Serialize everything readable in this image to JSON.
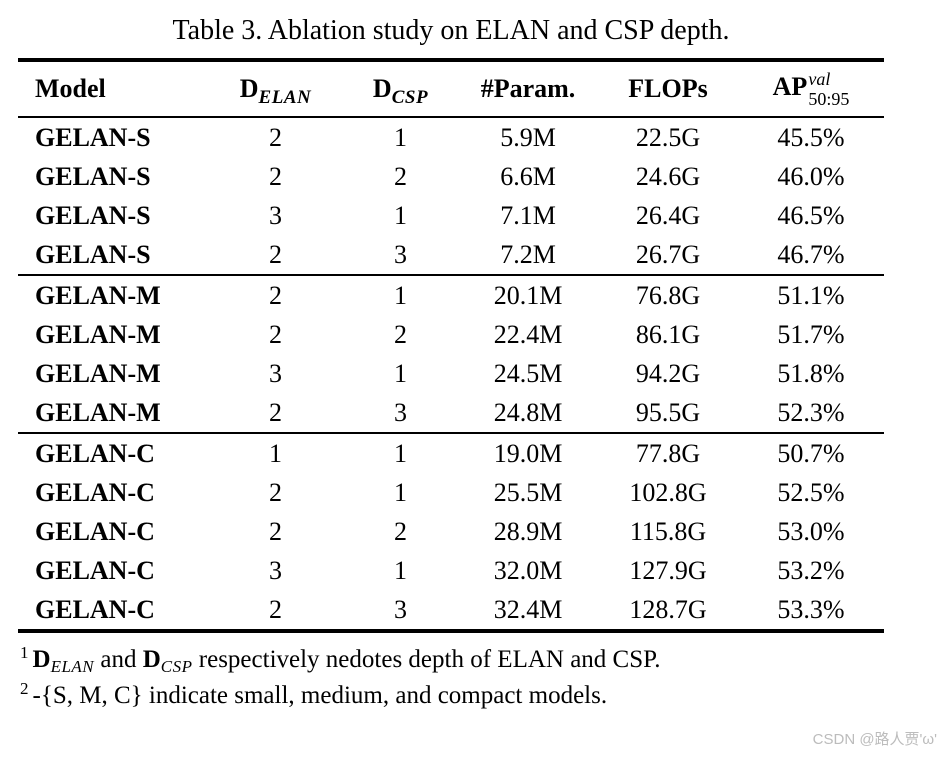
{
  "caption": "Table 3. Ablation study on ELAN and CSP depth.",
  "table": {
    "headers": {
      "model": "Model",
      "d_elan": {
        "base": "D",
        "sub": "ELAN"
      },
      "d_csp": {
        "base": "D",
        "sub": "CSP"
      },
      "params": "#Param.",
      "flops": "FLOPs",
      "ap": {
        "base": "AP",
        "sup": "val",
        "sub": "50:95"
      }
    },
    "groups": [
      {
        "rows": [
          [
            "GELAN-S",
            "2",
            "1",
            "5.9M",
            "22.5G",
            "45.5%"
          ],
          [
            "GELAN-S",
            "2",
            "2",
            "6.6M",
            "24.6G",
            "46.0%"
          ],
          [
            "GELAN-S",
            "3",
            "1",
            "7.1M",
            "26.4G",
            "46.5%"
          ],
          [
            "GELAN-S",
            "2",
            "3",
            "7.2M",
            "26.7G",
            "46.7%"
          ]
        ]
      },
      {
        "rows": [
          [
            "GELAN-M",
            "2",
            "1",
            "20.1M",
            "76.8G",
            "51.1%"
          ],
          [
            "GELAN-M",
            "2",
            "2",
            "22.4M",
            "86.1G",
            "51.7%"
          ],
          [
            "GELAN-M",
            "3",
            "1",
            "24.5M",
            "94.2G",
            "51.8%"
          ],
          [
            "GELAN-M",
            "2",
            "3",
            "24.8M",
            "95.5G",
            "52.3%"
          ]
        ]
      },
      {
        "rows": [
          [
            "GELAN-C",
            "1",
            "1",
            "19.0M",
            "77.8G",
            "50.7%"
          ],
          [
            "GELAN-C",
            "2",
            "1",
            "25.5M",
            "102.8G",
            "52.5%"
          ],
          [
            "GELAN-C",
            "2",
            "2",
            "28.9M",
            "115.8G",
            "53.0%"
          ],
          [
            "GELAN-C",
            "3",
            "1",
            "32.0M",
            "127.9G",
            "53.2%"
          ],
          [
            "GELAN-C",
            "2",
            "3",
            "32.4M",
            "128.7G",
            "53.3%"
          ]
        ]
      }
    ]
  },
  "footnotes": {
    "f1": {
      "marker": "1",
      "d1_base": "D",
      "d1_sub": "ELAN",
      "mid": " and ",
      "d2_base": "D",
      "d2_sub": "CSP",
      "rest": " respectively nedotes depth of ELAN and CSP."
    },
    "f2": {
      "marker": "2",
      "text": "-{S, M, C} indicate small, medium, and compact models."
    }
  },
  "watermark": "CSDN @路人贾'ω'"
}
